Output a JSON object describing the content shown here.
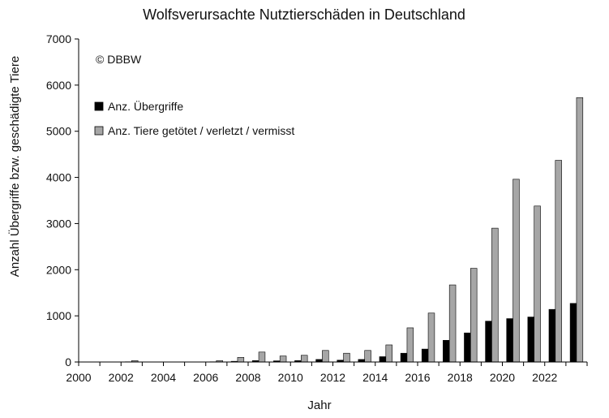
{
  "chart_data": {
    "type": "bar",
    "title": "Wolfsverursachte Nutztierschäden in Deutschland",
    "xlabel": "Jahr",
    "ylabel": "Anzahl Übergriffe bzw. geschädigte Tiere",
    "copyright": "© DBBW",
    "xlim": [
      2000,
      2024
    ],
    "ylim": [
      0,
      7000
    ],
    "yticks": [
      0,
      1000,
      2000,
      3000,
      4000,
      5000,
      6000,
      7000
    ],
    "xticks": [
      2000,
      2002,
      2004,
      2006,
      2008,
      2010,
      2012,
      2014,
      2016,
      2018,
      2020,
      2022
    ],
    "x": [
      2002,
      2006,
      2007,
      2008,
      2009,
      2010,
      2011,
      2012,
      2013,
      2014,
      2015,
      2016,
      2017,
      2018,
      2019,
      2020,
      2021,
      2022,
      2023
    ],
    "legend_position": "top-left",
    "grid": false,
    "series": [
      {
        "name": "Anz. Übergriffe",
        "color": "#000000",
        "values": [
          5,
          5,
          15,
          30,
          25,
          30,
          55,
          40,
          55,
          115,
          190,
          280,
          470,
          630,
          885,
          940,
          975,
          1140,
          1270
        ]
      },
      {
        "name": "Anz. Tiere getötet / verletzt / vermisst",
        "color": "#a6a6a6",
        "values": [
          30,
          30,
          100,
          215,
          130,
          145,
          250,
          190,
          250,
          370,
          740,
          1060,
          1670,
          2030,
          2900,
          3960,
          3380,
          4370,
          5730
        ]
      }
    ]
  }
}
